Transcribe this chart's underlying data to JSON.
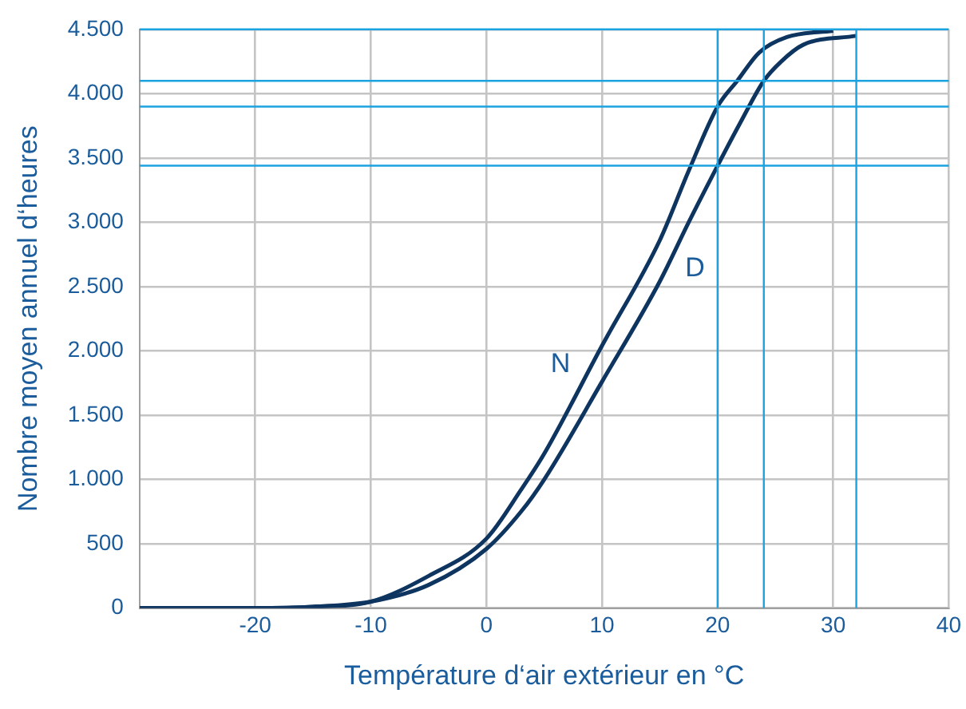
{
  "chart_data": {
    "type": "line",
    "xlabel": "Température d‘air extérieur en °C",
    "ylabel": "Nombre moyen annuel d‘heures",
    "xlim": [
      -30,
      40
    ],
    "xticks": [
      -20,
      -10,
      0,
      10,
      20,
      30,
      40
    ],
    "ylim": [
      0,
      4500
    ],
    "yticks": [
      0,
      500,
      {
        "value": 1000,
        "label": "1.000"
      },
      {
        "value": 1500,
        "label": "1.500"
      },
      {
        "value": 2000,
        "label": "2.000"
      },
      {
        "value": 2500,
        "label": "2.500"
      },
      {
        "value": 3000,
        "label": "3.000"
      },
      {
        "value": 3500,
        "label": "3.500"
      },
      {
        "value": 4000,
        "label": "4.000"
      },
      {
        "value": 4500,
        "label": "4.500"
      }
    ],
    "grid": true,
    "legend": false,
    "marker": "none",
    "line_style": "solid",
    "series": [
      {
        "color": "#0d3560",
        "x": [
          -30,
          -20,
          -15,
          -10,
          -5,
          0,
          3,
          5,
          10,
          15,
          17.5,
          20,
          21.7,
          23.6,
          26,
          30
        ],
        "name": "N",
        "values": [
          0,
          0,
          10,
          50,
          250,
          540,
          920,
          1200,
          2040,
          2860,
          3400,
          3900,
          4100,
          4320,
          4440,
          4490
        ]
      },
      {
        "color": "#0d3560",
        "x": [
          -30,
          -20,
          -15,
          -10,
          -5,
          0,
          3,
          5,
          10,
          15,
          17.5,
          20,
          22,
          24,
          25.5,
          27.4,
          32
        ],
        "name": "D",
        "values": [
          0,
          0,
          10,
          50,
          180,
          460,
          750,
          1000,
          1760,
          2540,
          3000,
          3440,
          3780,
          4100,
          4250,
          4380,
          4450
        ]
      }
    ],
    "ref_lines": [
      {
        "axis": "y",
        "value": 4500,
        "color": "#1aa3e0"
      },
      {
        "axis": "y",
        "value": 4100,
        "color": "#1aa3e0"
      },
      {
        "axis": "y",
        "value": 3900,
        "color": "#1aa3e0"
      },
      {
        "axis": "y",
        "value": 3440,
        "color": "#1aa3e0"
      },
      {
        "axis": "x",
        "value": 20,
        "color": "#1aa3e0"
      },
      {
        "axis": "x",
        "value": 24,
        "color": "#1aa3e0"
      },
      {
        "axis": "x",
        "value": 32,
        "color": "#1aa3e0"
      }
    ]
  }
}
